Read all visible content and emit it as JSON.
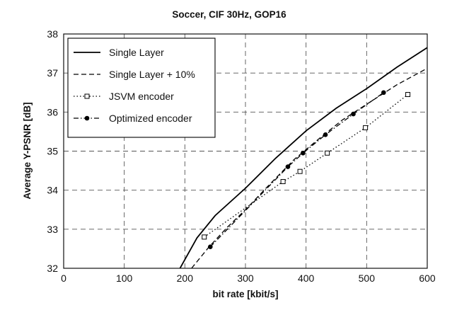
{
  "chart_data": {
    "type": "line",
    "title": "Soccer, CIF 30Hz, GOP16",
    "xlabel": "bit rate [kbit/s]",
    "ylabel": "Average Y-PSNR [dB]",
    "xlim": [
      0,
      600
    ],
    "ylim": [
      32,
      38
    ],
    "xticks": [
      "0",
      "100",
      "200",
      "300",
      "400",
      "500",
      "600"
    ],
    "yticks": [
      "32",
      "33",
      "34",
      "35",
      "36",
      "37",
      "38"
    ],
    "grid": true,
    "legend_position": "top-left",
    "series": [
      {
        "name": "Single Layer",
        "style": "solid",
        "marker": "none",
        "color": "#000000",
        "x": [
          192,
          220,
          250,
          300,
          350,
          400,
          450,
          500,
          550,
          600
        ],
        "y": [
          32.0,
          32.78,
          33.35,
          34.05,
          34.82,
          35.52,
          36.1,
          36.6,
          37.15,
          37.65
        ]
      },
      {
        "name": "Single Layer + 10%",
        "style": "dashed",
        "marker": "none",
        "color": "#000000",
        "x": [
          211,
          240,
          270,
          300,
          340,
          380,
          420,
          460,
          500,
          550,
          600
        ],
        "y": [
          32.0,
          32.55,
          33.05,
          33.5,
          34.15,
          34.78,
          35.3,
          35.8,
          36.2,
          36.7,
          37.12
        ]
      },
      {
        "name": "JSVM encoder",
        "style": "dotted",
        "marker": "square",
        "color": "#000000",
        "x": [
          232,
          362,
          390,
          435,
          498,
          568
        ],
        "y": [
          32.8,
          34.22,
          34.48,
          34.95,
          35.6,
          36.45
        ]
      },
      {
        "name": "Optimized encoder",
        "style": "dashdot",
        "marker": "circle",
        "color": "#000000",
        "x": [
          242,
          370,
          395,
          432,
          478,
          528
        ],
        "y": [
          32.55,
          34.6,
          34.95,
          35.42,
          35.95,
          36.5
        ]
      }
    ]
  }
}
